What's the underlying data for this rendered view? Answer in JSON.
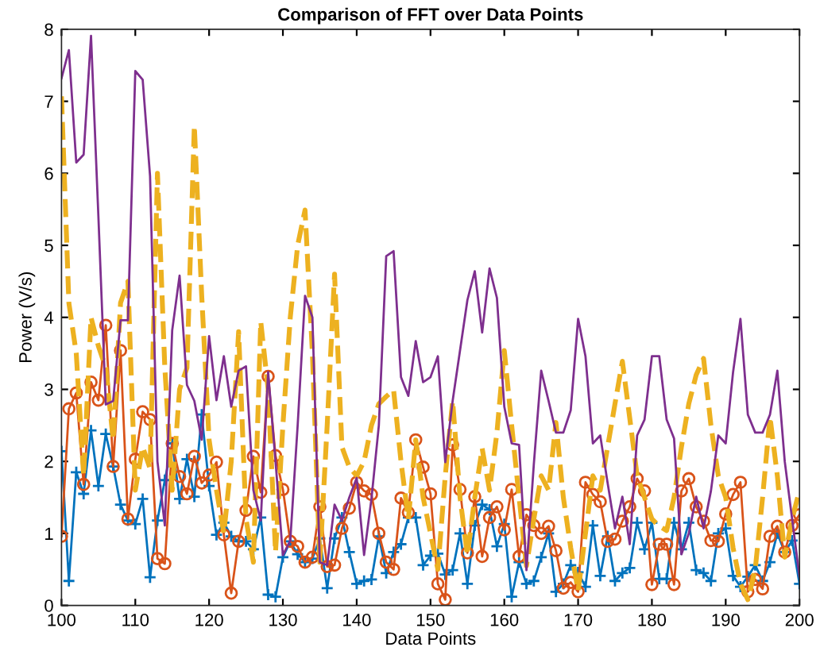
{
  "chart_data": {
    "type": "line",
    "title": "Comparison of FFT over Data Points",
    "xlabel": "Data Points",
    "ylabel": "Power (V/s)",
    "x": [
      100,
      101,
      102,
      103,
      104,
      105,
      106,
      107,
      108,
      109,
      110,
      111,
      112,
      113,
      114,
      115,
      116,
      117,
      118,
      119,
      120,
      121,
      122,
      123,
      124,
      125,
      126,
      127,
      128,
      129,
      130,
      131,
      132,
      133,
      134,
      135,
      136,
      137,
      138,
      139,
      140,
      141,
      142,
      143,
      144,
      145,
      146,
      147,
      148,
      149,
      150,
      151,
      152,
      153,
      154,
      155,
      156,
      157,
      158,
      159,
      160,
      161,
      162,
      163,
      164,
      165,
      166,
      167,
      168,
      169,
      170,
      171,
      172,
      173,
      174,
      175,
      176,
      177,
      178,
      179,
      180,
      181,
      182,
      183,
      184,
      185,
      186,
      187,
      188,
      189,
      190,
      191,
      192,
      193,
      194,
      195,
      196,
      197,
      198,
      199,
      200
    ],
    "xlim": [
      100,
      200
    ],
    "xticks": [
      100,
      110,
      120,
      130,
      140,
      150,
      160,
      170,
      180,
      190,
      200
    ],
    "ylim": [
      0,
      8
    ],
    "yticks": [
      0,
      1,
      2,
      3,
      4,
      5,
      6,
      7,
      8
    ],
    "grid": false,
    "series": [
      {
        "color": "#0072bd",
        "marker": "cross",
        "line_style": "solid",
        "values": [
          2.14,
          0.34,
          1.85,
          1.55,
          2.43,
          1.66,
          2.38,
          1.93,
          1.4,
          1.18,
          1.13,
          1.48,
          0.39,
          1.18,
          1.74,
          2.25,
          1.48,
          2.03,
          1.51,
          2.65,
          1.66,
          0.98,
          1.15,
          0.96,
          0.89,
          0.89,
          0.78,
          1.22,
          0.15,
          0.12,
          0.67,
          0.89,
          0.71,
          0.6,
          0.65,
          0.93,
          0.24,
          0.93,
          1.22,
          0.74,
          0.3,
          0.34,
          0.36,
          0.96,
          0.45,
          0.74,
          0.85,
          1.22,
          1.22,
          0.56,
          0.69,
          0.72,
          0.43,
          0.49,
          1.0,
          0.3,
          1.11,
          1.4,
          1.33,
          0.82,
          1.13,
          0.12,
          0.6,
          0.3,
          0.34,
          0.67,
          1.0,
          0.19,
          0.3,
          0.56,
          0.46,
          0.26,
          1.11,
          0.41,
          0.96,
          0.34,
          0.45,
          0.52,
          1.15,
          0.78,
          1.15,
          0.37,
          0.37,
          1.15,
          0.78,
          1.15,
          0.49,
          0.45,
          0.34,
          1.0,
          1.07,
          0.41,
          0.26,
          0.4,
          0.56,
          0.34,
          0.6,
          1.0,
          0.74,
          0.9,
          0.3
        ]
      },
      {
        "color": "#d95319",
        "marker": "circle",
        "line_style": "solid",
        "values": [
          0.96,
          2.73,
          2.95,
          1.68,
          3.1,
          2.85,
          3.89,
          1.93,
          3.54,
          1.2,
          2.03,
          2.69,
          2.58,
          0.65,
          0.58,
          2.25,
          1.79,
          1.55,
          2.07,
          1.7,
          1.81,
          1.99,
          0.98,
          0.17,
          0.89,
          1.32,
          2.07,
          1.57,
          3.18,
          2.08,
          1.61,
          0.89,
          0.82,
          0.6,
          0.67,
          1.37,
          0.54,
          0.56,
          1.07,
          1.35,
          1.71,
          1.59,
          1.54,
          1.0,
          0.6,
          0.5,
          1.49,
          1.29,
          2.3,
          1.92,
          1.55,
          0.3,
          0.08,
          2.23,
          1.61,
          0.73,
          1.51,
          0.68,
          1.22,
          1.37,
          1.05,
          1.61,
          0.68,
          1.26,
          1.11,
          1.0,
          1.1,
          0.76,
          0.24,
          0.32,
          0.19,
          1.71,
          1.54,
          1.44,
          0.89,
          0.92,
          1.17,
          1.37,
          1.76,
          1.59,
          0.29,
          0.85,
          0.85,
          0.29,
          1.59,
          1.76,
          1.37,
          1.17,
          0.9,
          0.89,
          1.27,
          1.54,
          1.71,
          0.19,
          0.36,
          0.23,
          0.96,
          1.1,
          0.74,
          1.11,
          1.26
        ]
      },
      {
        "color": "#edb120",
        "marker": "none",
        "line_style": "dashed",
        "values": [
          7.07,
          4.2,
          3.5,
          1.8,
          4.0,
          3.6,
          3.3,
          2.3,
          4.2,
          4.5,
          1.6,
          2.2,
          1.9,
          6.0,
          3.3,
          1.6,
          3.0,
          3.3,
          6.66,
          4.3,
          2.3,
          1.6,
          1.0,
          2.0,
          3.8,
          1.2,
          0.6,
          3.94,
          3.0,
          0.74,
          2.5,
          4.0,
          5.0,
          5.49,
          3.5,
          0.6,
          2.5,
          4.6,
          2.2,
          1.92,
          1.8,
          2.0,
          2.5,
          2.8,
          2.9,
          2.99,
          2.0,
          1.2,
          2.3,
          1.5,
          1.0,
          0.5,
          1.8,
          2.84,
          1.5,
          0.7,
          1.5,
          2.18,
          1.6,
          2.4,
          3.54,
          2.5,
          1.5,
          0.55,
          1.2,
          1.8,
          1.6,
          2.54,
          1.5,
          0.8,
          0.2,
          1.0,
          1.8,
          1.6,
          2.2,
          2.8,
          3.39,
          2.6,
          1.8,
          1.5,
          1.2,
          1.1,
          1.04,
          1.5,
          2.2,
          2.8,
          3.2,
          3.43,
          2.5,
          1.8,
          1.5,
          0.8,
          0.3,
          0.08,
          0.5,
          1.5,
          2.62,
          1.8,
          0.67,
          1.2,
          1.6
        ]
      },
      {
        "color": "#7e2f8e",
        "marker": "none",
        "line_style": "solid",
        "values": [
          7.32,
          7.71,
          6.15,
          6.26,
          7.91,
          5.4,
          2.79,
          2.84,
          3.96,
          3.96,
          7.42,
          7.3,
          5.96,
          2.0,
          1.11,
          3.82,
          4.58,
          3.06,
          2.84,
          2.3,
          3.74,
          2.85,
          3.46,
          2.76,
          3.26,
          3.32,
          1.6,
          1.18,
          3.24,
          2.0,
          0.7,
          0.9,
          2.5,
          4.3,
          4.0,
          0.6,
          0.56,
          1.4,
          1.18,
          1.5,
          1.77,
          0.7,
          1.48,
          2.5,
          4.85,
          4.92,
          3.17,
          2.91,
          3.67,
          3.1,
          3.17,
          3.46,
          1.99,
          2.84,
          3.54,
          4.24,
          4.64,
          3.79,
          4.68,
          4.27,
          2.76,
          2.25,
          2.23,
          0.49,
          1.96,
          3.26,
          2.84,
          2.4,
          2.4,
          2.71,
          3.98,
          3.46,
          2.25,
          2.36,
          1.7,
          1.07,
          1.51,
          0.85,
          2.36,
          2.58,
          3.46,
          3.46,
          2.58,
          2.32,
          0.71,
          1.0,
          1.51,
          1.07,
          1.59,
          2.36,
          2.25,
          3.24,
          3.98,
          2.65,
          2.4,
          2.4,
          2.65,
          3.26,
          2.0,
          1.2,
          0.4
        ]
      }
    ]
  }
}
